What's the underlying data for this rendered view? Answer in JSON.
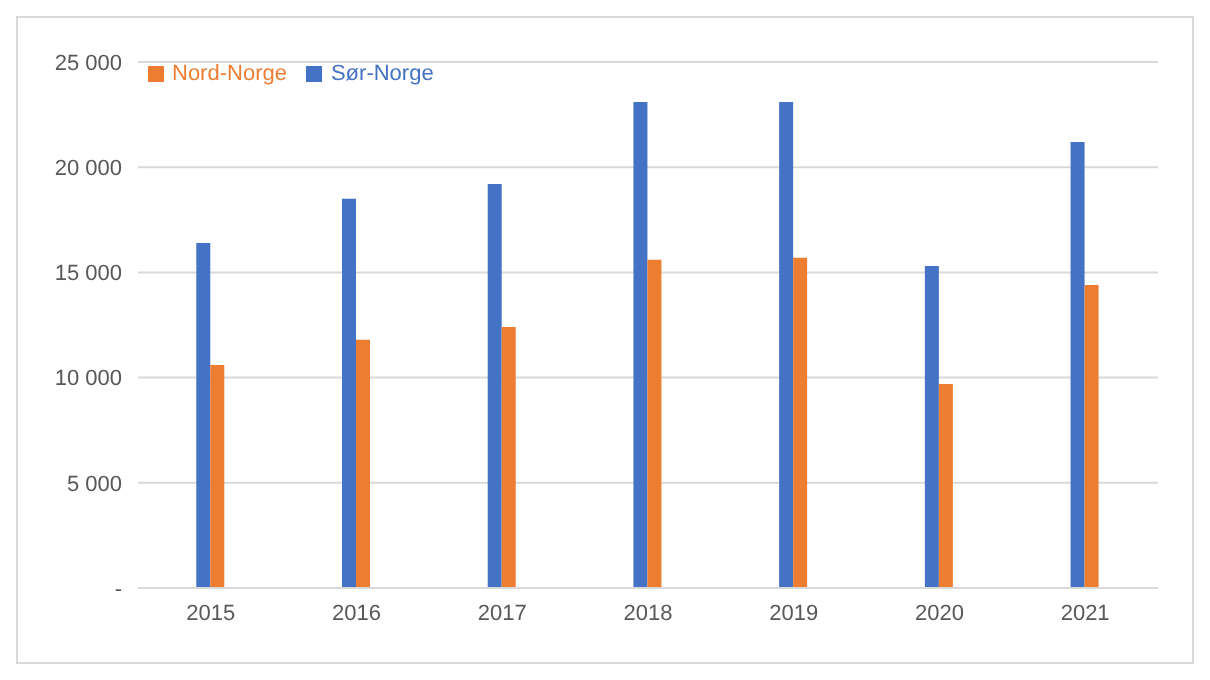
{
  "chart_data": {
    "type": "bar",
    "categories": [
      "2015",
      "2016",
      "2017",
      "2018",
      "2019",
      "2020",
      "2021"
    ],
    "series": [
      {
        "name": "Sør-Norge",
        "color": "#4472c4",
        "values": [
          16400,
          18500,
          19200,
          23100,
          23100,
          15300,
          21200
        ]
      },
      {
        "name": "Nord-Norge",
        "color": "#ed7d31",
        "values": [
          10600,
          11800,
          12400,
          15600,
          15700,
          9700,
          14400
        ]
      }
    ],
    "ylim": [
      0,
      25000
    ],
    "yticks": [
      {
        "value": 0,
        "label": "-"
      },
      {
        "value": 5000,
        "label": "5 000"
      },
      {
        "value": 10000,
        "label": "10 000"
      },
      {
        "value": 15000,
        "label": "15 000"
      },
      {
        "value": 20000,
        "label": "20 000"
      },
      {
        "value": 25000,
        "label": "25 000"
      }
    ],
    "grid": "y",
    "legend": "top left"
  }
}
